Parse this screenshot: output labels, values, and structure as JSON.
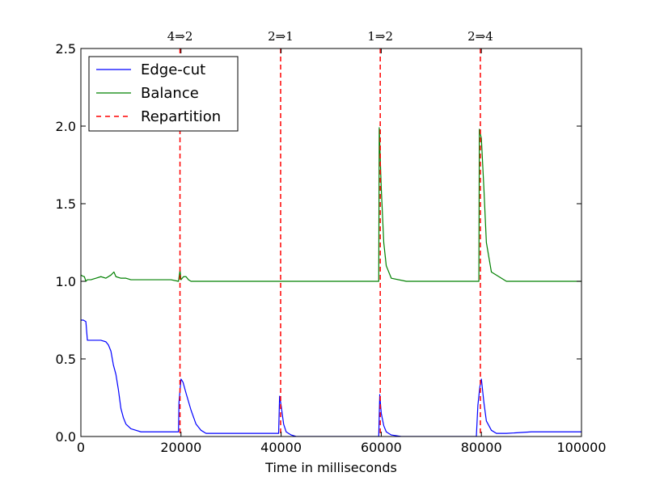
{
  "colors": {
    "edge_cut": "#0000ff",
    "balance": "#008000",
    "repartition": "#ff0000",
    "axes": "#000000",
    "background": "#ffffff"
  },
  "chart_data": {
    "type": "line",
    "title": "",
    "xlabel": "Time in milliseconds",
    "ylabel": "",
    "xlim": [
      0,
      100000
    ],
    "ylim": [
      0,
      2.5
    ],
    "grid": false,
    "legend_position": "top-left",
    "x_ticks": [
      0,
      20000,
      40000,
      60000,
      80000,
      100000
    ],
    "x_tick_labels": [
      "0",
      "20000",
      "40000",
      "60000",
      "80000",
      "100000"
    ],
    "y_ticks": [
      0.0,
      0.5,
      1.0,
      1.5,
      2.0,
      2.5
    ],
    "y_tick_labels": [
      "0.0",
      "0.5",
      "1.0",
      "1.5",
      "2.0",
      "2.5"
    ],
    "series": [
      {
        "name": "Edge-cut",
        "style": "solid",
        "color": "#0000ff",
        "x": [
          0,
          500,
          1000,
          1300,
          1600,
          2000,
          3000,
          4000,
          5000,
          5500,
          6000,
          6500,
          7000,
          7500,
          8000,
          8500,
          9000,
          10000,
          11000,
          12000,
          14000,
          16000,
          18000,
          19500,
          19600,
          20000,
          20400,
          21000,
          22000,
          23000,
          24000,
          25000,
          27000,
          30000,
          33000,
          36000,
          39000,
          39500,
          39700,
          40000,
          40500,
          41000,
          42000,
          43000,
          45000,
          50000,
          55000,
          59000,
          59500,
          59700,
          60000,
          60500,
          61000,
          62000,
          64000,
          70000,
          75000,
          79000,
          79300,
          79700,
          80000,
          80500,
          81000,
          82000,
          83000,
          85000,
          90000,
          95000,
          100000
        ],
        "y": [
          0.75,
          0.75,
          0.74,
          0.62,
          0.62,
          0.62,
          0.62,
          0.62,
          0.61,
          0.59,
          0.55,
          0.46,
          0.4,
          0.3,
          0.18,
          0.12,
          0.08,
          0.05,
          0.04,
          0.03,
          0.03,
          0.03,
          0.03,
          0.03,
          0.22,
          0.37,
          0.35,
          0.28,
          0.17,
          0.08,
          0.04,
          0.02,
          0.02,
          0.02,
          0.02,
          0.02,
          0.02,
          0.02,
          0.26,
          0.2,
          0.08,
          0.03,
          0.01,
          0.0,
          0.0,
          0.0,
          0.0,
          0.0,
          0.0,
          0.27,
          0.15,
          0.07,
          0.03,
          0.01,
          0.0,
          0.0,
          0.0,
          0.0,
          0.2,
          0.32,
          0.37,
          0.22,
          0.1,
          0.04,
          0.02,
          0.02,
          0.03,
          0.03,
          0.03
        ]
      },
      {
        "name": "Balance",
        "style": "solid",
        "color": "#008000",
        "x": [
          0,
          600,
          700,
          1000,
          1300,
          2000,
          3000,
          4000,
          5000,
          6000,
          6600,
          7000,
          8000,
          9000,
          10000,
          12000,
          15000,
          18000,
          19500,
          19800,
          20000,
          20500,
          21000,
          21500,
          22000,
          25000,
          30000,
          35000,
          39000,
          39500,
          40000,
          45000,
          50000,
          55000,
          59000,
          59500,
          59600,
          60000,
          60500,
          61000,
          62000,
          65000,
          70000,
          75000,
          79000,
          79500,
          79600,
          80000,
          80500,
          81000,
          82000,
          85000,
          90000,
          95000,
          100000
        ],
        "y": [
          1.04,
          1.03,
          1.03,
          1.0,
          1.01,
          1.01,
          1.02,
          1.03,
          1.02,
          1.04,
          1.06,
          1.03,
          1.02,
          1.02,
          1.01,
          1.01,
          1.01,
          1.01,
          1.0,
          1.07,
          1.01,
          1.03,
          1.03,
          1.01,
          1.0,
          1.0,
          1.0,
          1.0,
          1.0,
          1.0,
          1.0,
          1.0,
          1.0,
          1.0,
          1.0,
          1.0,
          1.99,
          1.6,
          1.25,
          1.1,
          1.02,
          1.0,
          1.0,
          1.0,
          1.0,
          1.0,
          1.98,
          1.92,
          1.6,
          1.25,
          1.06,
          1.0,
          1.0,
          1.0,
          1.0
        ]
      }
    ],
    "repartitions": [
      {
        "name": "Repartition",
        "x": 19800,
        "label": "4⇒2"
      },
      {
        "name": "Repartition",
        "x": 39900,
        "label": "2⇒1"
      },
      {
        "name": "Repartition",
        "x": 59800,
        "label": "1⇒2"
      },
      {
        "name": "Repartition",
        "x": 79800,
        "label": "2⇒4"
      }
    ],
    "legend": [
      {
        "name": "Edge-cut",
        "style": "solid",
        "color": "#0000ff"
      },
      {
        "name": "Balance",
        "style": "solid",
        "color": "#008000"
      },
      {
        "name": "Repartition",
        "style": "dashed",
        "color": "#ff0000"
      }
    ]
  }
}
